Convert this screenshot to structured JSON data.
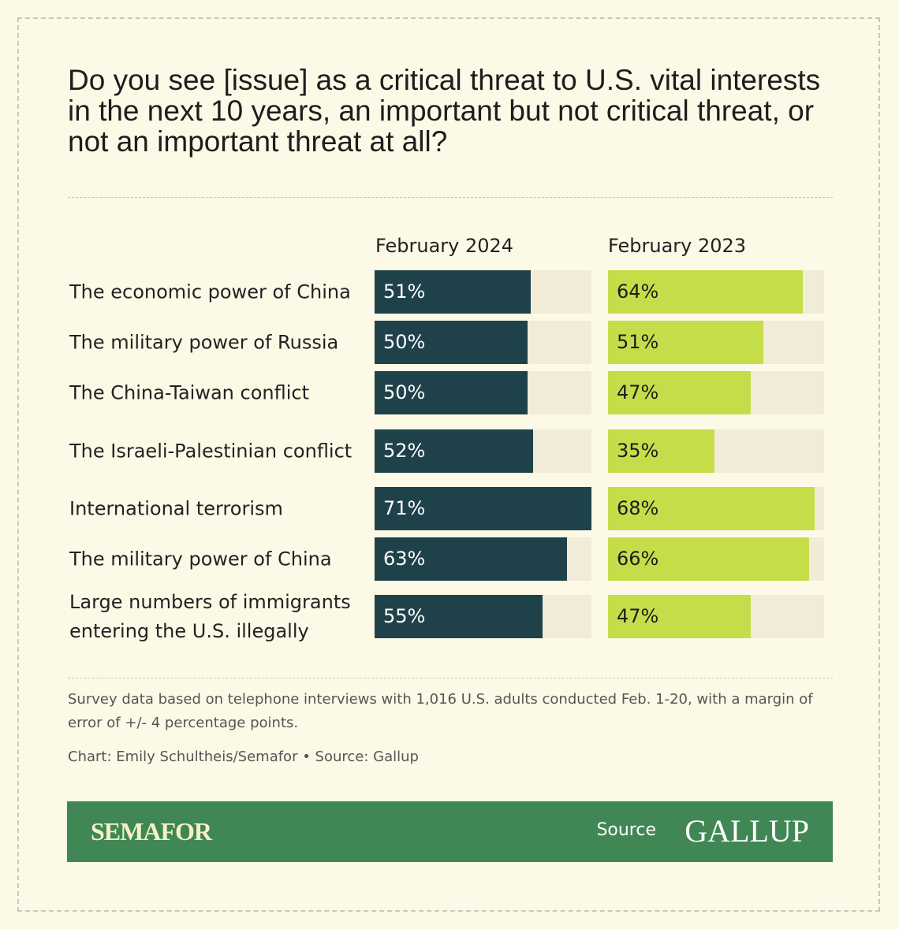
{
  "title": "Do you see [issue] as a critical threat to U.S. vital interests in the next 10 years, an important but not critical threat, or not an important threat at all?",
  "chart_data": {
    "type": "bar",
    "title": "Do you see [issue] as a critical threat to U.S. vital interests in the next 10 years, an important but not critical threat, or not an important threat at all?",
    "categories": [
      "The economic power of China",
      "The military power of Russia",
      "The China-Taiwan conflict",
      "The Israeli-Palestinian conflict",
      "International terrorism",
      "The military power of China",
      "Large numbers of immigrants entering the U.S. illegally"
    ],
    "series": [
      {
        "name": "February 2024",
        "color": "#1f424a",
        "text_color": "#ffffff",
        "values": [
          51,
          50,
          50,
          52,
          71,
          63,
          55
        ],
        "labels": [
          "51%",
          "50%",
          "50%",
          "52%",
          "71%",
          "63%",
          "55%"
        ]
      },
      {
        "name": "February 2023",
        "color": "#c6dd4a",
        "text_color": "#1d1d1d",
        "values": [
          64,
          51,
          47,
          35,
          68,
          66,
          47
        ],
        "labels": [
          "64%",
          "51%",
          "47%",
          "35%",
          "68%",
          "66%",
          "47%"
        ]
      }
    ],
    "xlim": [
      0,
      71
    ],
    "track_color": "#f0ecd8"
  },
  "footer": {
    "note": "Survey data based on telephone interviews with 1,016 U.S. adults conducted Feb. 1-20, with a margin of error of +/- 4 percentage points.",
    "credit": "Chart: Emily Schultheis/Semafor • Source: Gallup"
  },
  "banner": {
    "brand": "SEMAFOR",
    "source_label": "Source",
    "source_logo": "GALLUP"
  }
}
